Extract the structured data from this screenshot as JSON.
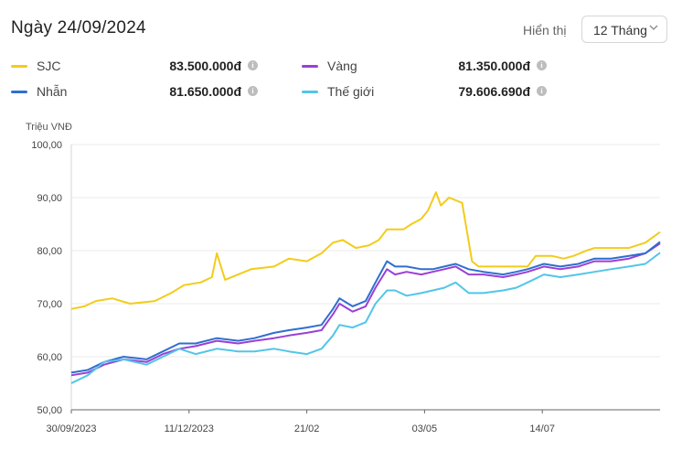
{
  "header": {
    "title": "Ngày 24/09/2024",
    "display_label": "Hiển thị",
    "period_select": {
      "value": "12 Tháng"
    }
  },
  "legend": [
    {
      "name": "SJC",
      "value": "83.500.000đ",
      "color": "#f2cc1a"
    },
    {
      "name": "Vàng",
      "value": "81.350.000đ",
      "color": "#9b3fd6"
    },
    {
      "name": "Nhẫn",
      "value": "81.650.000đ",
      "color": "#2f6fce"
    },
    {
      "name": "Thế giới",
      "value": "79.606.690đ",
      "color": "#52c5e8"
    }
  ],
  "chart_data": {
    "type": "line",
    "ylabel": "Triệu VNĐ",
    "ylim": [
      50,
      100
    ],
    "yticks": [
      "100,00",
      "90,00",
      "80,00",
      "70,00",
      "60,00",
      "50,00"
    ],
    "xticks": [
      "30/09/2023",
      "11/12/2023",
      "21/02",
      "03/05",
      "14/07"
    ],
    "x_domain": [
      "2023-09-30",
      "2024-09-24"
    ],
    "series": [
      {
        "name": "SJC",
        "color": "#f2cc1a",
        "points": [
          [
            "2023-09-30",
            69.0
          ],
          [
            "2023-10-08",
            69.5
          ],
          [
            "2023-10-15",
            70.5
          ],
          [
            "2023-10-25",
            71.0
          ],
          [
            "2023-11-05",
            70.0
          ],
          [
            "2023-11-20",
            70.5
          ],
          [
            "2023-11-30",
            72.0
          ],
          [
            "2023-12-08",
            73.5
          ],
          [
            "2023-12-18",
            74.0
          ],
          [
            "2023-12-25",
            75.0
          ],
          [
            "2023-12-28",
            79.5
          ],
          [
            "2024-01-02",
            74.5
          ],
          [
            "2024-01-10",
            75.5
          ],
          [
            "2024-01-18",
            76.5
          ],
          [
            "2024-02-01",
            77.0
          ],
          [
            "2024-02-10",
            78.5
          ],
          [
            "2024-02-21",
            78.0
          ],
          [
            "2024-03-01",
            79.5
          ],
          [
            "2024-03-08",
            81.5
          ],
          [
            "2024-03-14",
            82.0
          ],
          [
            "2024-03-22",
            80.5
          ],
          [
            "2024-03-30",
            81.0
          ],
          [
            "2024-04-05",
            82.0
          ],
          [
            "2024-04-10",
            84.0
          ],
          [
            "2024-04-20",
            84.0
          ],
          [
            "2024-04-25",
            85.0
          ],
          [
            "2024-05-01",
            86.0
          ],
          [
            "2024-05-05",
            87.5
          ],
          [
            "2024-05-10",
            91.0
          ],
          [
            "2024-05-13",
            88.5
          ],
          [
            "2024-05-18",
            90.0
          ],
          [
            "2024-05-26",
            89.0
          ],
          [
            "2024-06-01",
            78.0
          ],
          [
            "2024-06-05",
            77.0
          ],
          [
            "2024-07-05",
            77.0
          ],
          [
            "2024-07-10",
            79.0
          ],
          [
            "2024-07-20",
            79.0
          ],
          [
            "2024-07-27",
            78.5
          ],
          [
            "2024-08-02",
            79.0
          ],
          [
            "2024-08-10",
            80.0
          ],
          [
            "2024-08-15",
            80.5
          ],
          [
            "2024-09-05",
            80.5
          ],
          [
            "2024-09-15",
            81.5
          ],
          [
            "2024-09-24",
            83.5
          ]
        ]
      },
      {
        "name": "Vàng",
        "color": "#9b3fd6",
        "points": [
          [
            "2023-09-30",
            56.5
          ],
          [
            "2023-10-10",
            57.0
          ],
          [
            "2023-10-20",
            58.5
          ],
          [
            "2023-11-01",
            59.5
          ],
          [
            "2023-11-15",
            59.0
          ],
          [
            "2023-11-25",
            60.5
          ],
          [
            "2023-12-05",
            61.5
          ],
          [
            "2023-12-15",
            62.0
          ],
          [
            "2023-12-28",
            63.0
          ],
          [
            "2024-01-10",
            62.5
          ],
          [
            "2024-01-20",
            63.0
          ],
          [
            "2024-02-01",
            63.5
          ],
          [
            "2024-02-10",
            64.0
          ],
          [
            "2024-02-21",
            64.5
          ],
          [
            "2024-03-01",
            65.0
          ],
          [
            "2024-03-08",
            68.0
          ],
          [
            "2024-03-12",
            70.0
          ],
          [
            "2024-03-20",
            68.5
          ],
          [
            "2024-03-28",
            69.5
          ],
          [
            "2024-04-03",
            73.0
          ],
          [
            "2024-04-10",
            76.5
          ],
          [
            "2024-04-15",
            75.5
          ],
          [
            "2024-04-22",
            76.0
          ],
          [
            "2024-05-01",
            75.5
          ],
          [
            "2024-05-08",
            76.0
          ],
          [
            "2024-05-15",
            76.5
          ],
          [
            "2024-05-22",
            77.0
          ],
          [
            "2024-05-30",
            75.5
          ],
          [
            "2024-06-08",
            75.5
          ],
          [
            "2024-06-20",
            75.0
          ],
          [
            "2024-06-28",
            75.5
          ],
          [
            "2024-07-05",
            76.0
          ],
          [
            "2024-07-15",
            77.0
          ],
          [
            "2024-07-25",
            76.5
          ],
          [
            "2024-08-05",
            77.0
          ],
          [
            "2024-08-15",
            78.0
          ],
          [
            "2024-08-25",
            78.0
          ],
          [
            "2024-09-05",
            78.5
          ],
          [
            "2024-09-15",
            79.5
          ],
          [
            "2024-09-24",
            81.35
          ]
        ]
      },
      {
        "name": "Nhẫn",
        "color": "#2f6fce",
        "points": [
          [
            "2023-09-30",
            57.0
          ],
          [
            "2023-10-10",
            57.5
          ],
          [
            "2023-10-20",
            59.0
          ],
          [
            "2023-11-01",
            60.0
          ],
          [
            "2023-11-15",
            59.5
          ],
          [
            "2023-11-25",
            61.0
          ],
          [
            "2023-12-05",
            62.5
          ],
          [
            "2023-12-15",
            62.5
          ],
          [
            "2023-12-28",
            63.5
          ],
          [
            "2024-01-10",
            63.0
          ],
          [
            "2024-01-20",
            63.5
          ],
          [
            "2024-02-01",
            64.5
          ],
          [
            "2024-02-10",
            65.0
          ],
          [
            "2024-02-21",
            65.5
          ],
          [
            "2024-03-01",
            66.0
          ],
          [
            "2024-03-08",
            69.0
          ],
          [
            "2024-03-12",
            71.0
          ],
          [
            "2024-03-20",
            69.5
          ],
          [
            "2024-03-28",
            70.5
          ],
          [
            "2024-04-03",
            74.0
          ],
          [
            "2024-04-10",
            78.0
          ],
          [
            "2024-04-15",
            77.0
          ],
          [
            "2024-04-22",
            77.0
          ],
          [
            "2024-05-01",
            76.5
          ],
          [
            "2024-05-08",
            76.5
          ],
          [
            "2024-05-15",
            77.0
          ],
          [
            "2024-05-22",
            77.5
          ],
          [
            "2024-05-30",
            76.5
          ],
          [
            "2024-06-08",
            76.0
          ],
          [
            "2024-06-20",
            75.5
          ],
          [
            "2024-06-28",
            76.0
          ],
          [
            "2024-07-05",
            76.5
          ],
          [
            "2024-07-15",
            77.5
          ],
          [
            "2024-07-25",
            77.0
          ],
          [
            "2024-08-05",
            77.5
          ],
          [
            "2024-08-15",
            78.5
          ],
          [
            "2024-08-25",
            78.5
          ],
          [
            "2024-09-05",
            79.0
          ],
          [
            "2024-09-15",
            79.5
          ],
          [
            "2024-09-24",
            81.65
          ]
        ]
      },
      {
        "name": "Thế giới",
        "color": "#52c5e8",
        "points": [
          [
            "2023-09-30",
            55.0
          ],
          [
            "2023-10-10",
            56.5
          ],
          [
            "2023-10-20",
            59.0
          ],
          [
            "2023-11-01",
            59.5
          ],
          [
            "2023-11-15",
            58.5
          ],
          [
            "2023-11-25",
            60.0
          ],
          [
            "2023-12-05",
            61.5
          ],
          [
            "2023-12-15",
            60.5
          ],
          [
            "2023-12-28",
            61.5
          ],
          [
            "2024-01-10",
            61.0
          ],
          [
            "2024-01-20",
            61.0
          ],
          [
            "2024-02-01",
            61.5
          ],
          [
            "2024-02-10",
            61.0
          ],
          [
            "2024-02-21",
            60.5
          ],
          [
            "2024-03-01",
            61.5
          ],
          [
            "2024-03-08",
            64.0
          ],
          [
            "2024-03-12",
            66.0
          ],
          [
            "2024-03-20",
            65.5
          ],
          [
            "2024-03-28",
            66.5
          ],
          [
            "2024-04-03",
            70.0
          ],
          [
            "2024-04-10",
            72.5
          ],
          [
            "2024-04-15",
            72.5
          ],
          [
            "2024-04-22",
            71.5
          ],
          [
            "2024-05-01",
            72.0
          ],
          [
            "2024-05-08",
            72.5
          ],
          [
            "2024-05-15",
            73.0
          ],
          [
            "2024-05-22",
            74.0
          ],
          [
            "2024-05-30",
            72.0
          ],
          [
            "2024-06-08",
            72.0
          ],
          [
            "2024-06-20",
            72.5
          ],
          [
            "2024-06-28",
            73.0
          ],
          [
            "2024-07-05",
            74.0
          ],
          [
            "2024-07-15",
            75.5
          ],
          [
            "2024-07-25",
            75.0
          ],
          [
            "2024-08-05",
            75.5
          ],
          [
            "2024-08-15",
            76.0
          ],
          [
            "2024-08-25",
            76.5
          ],
          [
            "2024-09-05",
            77.0
          ],
          [
            "2024-09-15",
            77.5
          ],
          [
            "2024-09-24",
            79.6
          ]
        ]
      }
    ]
  }
}
